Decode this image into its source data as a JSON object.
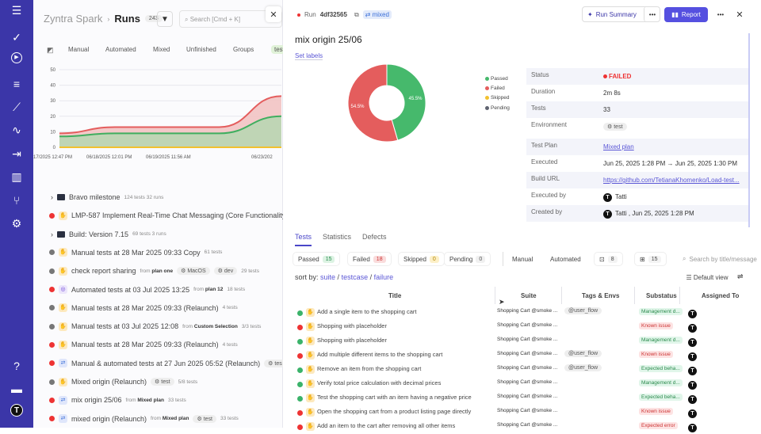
{
  "sidebar": {
    "icons": [
      "menu-icon",
      "check-icon",
      "play-icon",
      "list-icon",
      "steps-icon",
      "pulse-icon",
      "import-icon",
      "analytics-icon",
      "branch-icon",
      "settings-icon",
      "help-icon",
      "folder-icon",
      "avatar-icon"
    ],
    "avatar": "T"
  },
  "left": {
    "project": "Zyntra Spark",
    "page": "Runs",
    "count": "243",
    "search_placeholder": "Search [Cmd + K]",
    "tabs": [
      "Manual",
      "Automated",
      "Mixed",
      "Unfinished",
      "Groups",
      "test"
    ],
    "chart": {
      "type": "area",
      "y_ticks": [
        "50",
        "40",
        "30",
        "20",
        "10",
        "0"
      ],
      "ylim": [
        0,
        50
      ],
      "x_labels": [
        "17/2025 12:47 PM",
        "06/18/2025 12:01 PM",
        "06/19/2025 11:56 AM",
        "06/23/202"
      ],
      "series": [
        {
          "color": "#e45d5d",
          "values": [
            9,
            13,
            13,
            13,
            33
          ]
        },
        {
          "color": "#3fae5f",
          "values": [
            7,
            9,
            9,
            9,
            20
          ]
        },
        {
          "color": "#f2c12e",
          "values": [
            0,
            0,
            0,
            0,
            0
          ]
        }
      ]
    },
    "runs": [
      {
        "type": "group",
        "title": "Bravo milestone",
        "meta": "124 tests  32 runs"
      },
      {
        "status": "failed",
        "icon": "manual",
        "title": "LMP-587 Implement Real-Time Chat Messaging (Core Functionality)"
      },
      {
        "type": "group",
        "title": "Build: Version 7.15",
        "meta": "69 tests  3 runs"
      },
      {
        "status": "pending",
        "icon": "manual",
        "title": "Manual tests at 28 Mar 2025 09:33 Copy",
        "meta": "61 tests"
      },
      {
        "status": "pending",
        "icon": "manual",
        "title": "check report sharing",
        "from": "plan one",
        "envs": [
          "MacOS",
          "dev"
        ],
        "meta": "29 tests"
      },
      {
        "status": "failed",
        "icon": "auto",
        "title": "Automated tests at 03 Jul 2025 13:25",
        "from": "plan 12",
        "meta": "18 tests"
      },
      {
        "status": "pending",
        "icon": "manual",
        "title": "Manual tests at 28 Mar 2025 09:33 (Relaunch)",
        "meta": "4 tests"
      },
      {
        "status": "pending",
        "icon": "manual",
        "title": "Manual tests at 03 Jul 2025 12:08",
        "from": "Custom Selection",
        "meta": "3/3 tests"
      },
      {
        "status": "failed",
        "icon": "manual",
        "title": "Manual tests at 28 Mar 2025 09:33 (Relaunch)",
        "meta": "4 tests"
      },
      {
        "status": "failed",
        "icon": "mix",
        "title": "Manual & automated tests at 27 Jun 2025 05:52 (Relaunch)",
        "envs": [
          "tes"
        ]
      },
      {
        "status": "pending",
        "icon": "manual",
        "title": "Mixed origin (Relaunch)",
        "envs": [
          "test"
        ],
        "meta": "5/8 tests"
      },
      {
        "status": "failed",
        "icon": "mix",
        "title": "mix origin 25/06",
        "from": "Mixed plan",
        "meta": "33 tests"
      },
      {
        "status": "failed",
        "icon": "mix",
        "title": "mixed origin (Relaunch)",
        "from": "Mixed plan",
        "envs": [
          "test"
        ],
        "meta": "33 tests"
      }
    ],
    "from_label": "from"
  },
  "run": {
    "id_label": "Run",
    "id": "4df32565",
    "type": "mixed",
    "run_summary": "Run Summary",
    "report": "Report",
    "title": "mix origin 25/06",
    "set_labels": "Set labels",
    "donut": {
      "passed_pct": 45.5,
      "failed_pct": 54.5,
      "passed_label": "45.5%",
      "failed_label": "54.5%"
    },
    "legend": [
      {
        "label": "Passed",
        "color": "#46b96c"
      },
      {
        "label": "Failed",
        "color": "#e45d5d"
      },
      {
        "label": "Skipped",
        "color": "#f2c12e"
      },
      {
        "label": "Pending",
        "color": "#5f6370"
      }
    ],
    "details": [
      {
        "label": "Status",
        "value": "FAILED"
      },
      {
        "label": "Duration",
        "value": "2m 8s"
      },
      {
        "label": "Tests",
        "value": "33"
      },
      {
        "label": "Environment",
        "value": "test"
      },
      {
        "label": "Test Plan",
        "value": "Mixed plan"
      },
      {
        "label": "Executed",
        "value": "Jun 25, 2025 1:28 PM → Jun 25, 2025 1:30 PM"
      },
      {
        "label": "Build URL",
        "value": "https://github.com/TetianaKhomenko/Load-test..."
      },
      {
        "label": "Executed by",
        "value": "Tatti"
      },
      {
        "label": "Created by",
        "value": "Tatti , Jun 25, 2025 1:28 PM"
      }
    ],
    "tabs": [
      "Tests",
      "Statistics",
      "Defects"
    ],
    "filters": [
      {
        "label": "Passed",
        "count": "15"
      },
      {
        "label": "Failed",
        "count": "18"
      },
      {
        "label": "Skipped",
        "count": "0"
      },
      {
        "label": "Pending",
        "count": "0"
      }
    ],
    "type_filters": [
      "Manual",
      "Automated"
    ],
    "comments_count": "8",
    "added_count": "15",
    "search_placeholder": "Search by title/message",
    "sort_label": "sort by:",
    "sort": [
      "suite",
      "testcase",
      "failure"
    ],
    "default_view": "Default view",
    "columns": [
      "Title",
      "Suite",
      "Tags & Envs",
      "Substatus",
      "Assigned To"
    ],
    "tests": [
      {
        "status": "passed",
        "title": "Add a single item to the shopping cart",
        "suite": "Shopping Cart @smoke ...",
        "tag": "@user_flow",
        "substatus": "Management d..."
      },
      {
        "status": "failed",
        "title": "Shopping with placeholder",
        "suite": "Shopping Cart @smoke ...",
        "tag": "",
        "substatus": "Known issue"
      },
      {
        "status": "passed",
        "title": "Shopping with placeholder",
        "suite": "Shopping Cart @smoke ...",
        "tag": "",
        "substatus": "Management d..."
      },
      {
        "status": "failed",
        "title": "Add multiple different items to the shopping cart",
        "suite": "Shopping Cart @smoke ...",
        "tag": "@user_flow",
        "substatus": "Known issue"
      },
      {
        "status": "passed",
        "title": "Remove an item from the shopping cart",
        "suite": "Shopping Cart @smoke ...",
        "tag": "@user_flow",
        "substatus": "Expected beha..."
      },
      {
        "status": "passed",
        "title": "Verify total price calculation with decimal prices",
        "suite": "Shopping Cart @smoke ...",
        "tag": "",
        "substatus": "Management d..."
      },
      {
        "status": "passed",
        "title": "Test the shopping cart with an item having a negative price",
        "suite": "Shopping Cart @smoke ...",
        "tag": "",
        "substatus": "Expected beha..."
      },
      {
        "status": "failed",
        "title": "Open the shopping cart from a product listing page directly",
        "suite": "Shopping Cart @smoke ...",
        "tag": "",
        "substatus": "Known issue"
      },
      {
        "status": "failed",
        "title": "Add an item to the cart after removing all other items",
        "suite": "Shopping Cart @smoke ...",
        "tag": "",
        "substatus": "Expected error"
      }
    ],
    "assignee": "T"
  }
}
